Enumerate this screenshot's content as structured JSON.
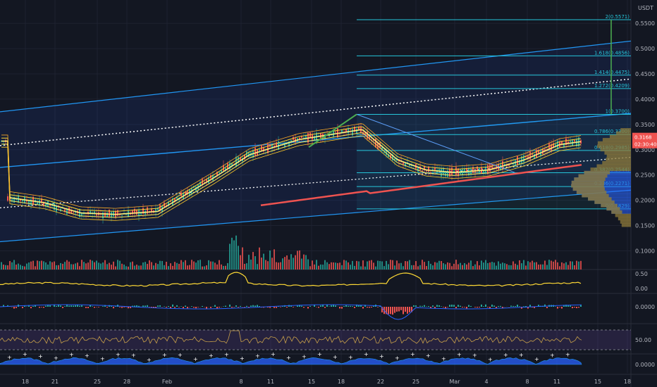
{
  "currency": "USDT",
  "price_axis": {
    "ticks": [
      "0.5500",
      "0.5000",
      "0.4500",
      "0.4000",
      "0.3500",
      "0.3000",
      "0.2500",
      "0.2000",
      "0.1500",
      "0.1000"
    ],
    "min": 0.07,
    "max": 0.585,
    "last_price_tag": "0.3168",
    "countdown_tag": "02:30:40",
    "last_price": 0.3168
  },
  "time_axis": {
    "labels": [
      "18",
      "21",
      "25",
      "28",
      "Feb",
      "8",
      "11",
      "15",
      "18",
      "22",
      "25",
      "Mar",
      "4",
      "8",
      "11",
      "15",
      "18"
    ]
  },
  "fib_levels": [
    {
      "label": "2(0.5571)",
      "value": 0.5571
    },
    {
      "label": "1.618(0.4856)",
      "value": 0.4856
    },
    {
      "label": "1.414(0.4475)",
      "value": 0.4475
    },
    {
      "label": "1.272(0.4209)",
      "value": 0.4209
    },
    {
      "label": "1(0.3700)",
      "value": 0.37
    },
    {
      "label": "0.786(0.3300)",
      "value": 0.33
    },
    {
      "label": "0.618(0.2985)",
      "value": 0.2985
    },
    {
      "label": "0.382(0.2544)",
      "value": 0.2544
    },
    {
      "label": "0.236(0.2271)",
      "value": 0.2271
    },
    {
      "label": "0(0.1829)",
      "value": 0.1829
    }
  ],
  "indicators": [
    {
      "name": "volatility-pane",
      "ticks": [
        "0.50",
        "0.00"
      ]
    },
    {
      "name": "macd-pane",
      "ticks": [
        "0.0000"
      ]
    },
    {
      "name": "rsi-pane",
      "ticks": [
        "50.00"
      ]
    },
    {
      "name": "oscillator-pane",
      "ticks": [
        "0.0000"
      ]
    }
  ],
  "colors": {
    "background": "#131722",
    "channel": "#2962ff",
    "fib": "#26c6da",
    "ma_yellow": "#ffeb3b",
    "ma_red": "#ef5350",
    "up": "#26a69a",
    "down": "#ef5350",
    "volume_profile": "#8d7a3a",
    "volume_profile_blue": "#2962ff"
  },
  "chart_data": {
    "type": "line",
    "x": [
      "18",
      "21",
      "25",
      "28",
      "Feb",
      "8",
      "11",
      "15",
      "18",
      "22",
      "25",
      "Mar",
      "4",
      "8",
      "11",
      "15"
    ],
    "series": [
      {
        "values": [
          0.205,
          0.195,
          0.175,
          0.172,
          0.178,
          0.245,
          0.29,
          0.32,
          0.34,
          0.28,
          0.26,
          0.255,
          0.26,
          0.28,
          0.31,
          0.317
        ]
      }
    ],
    "ylim": [
      0.07,
      0.585
    ],
    "grid": true
  }
}
